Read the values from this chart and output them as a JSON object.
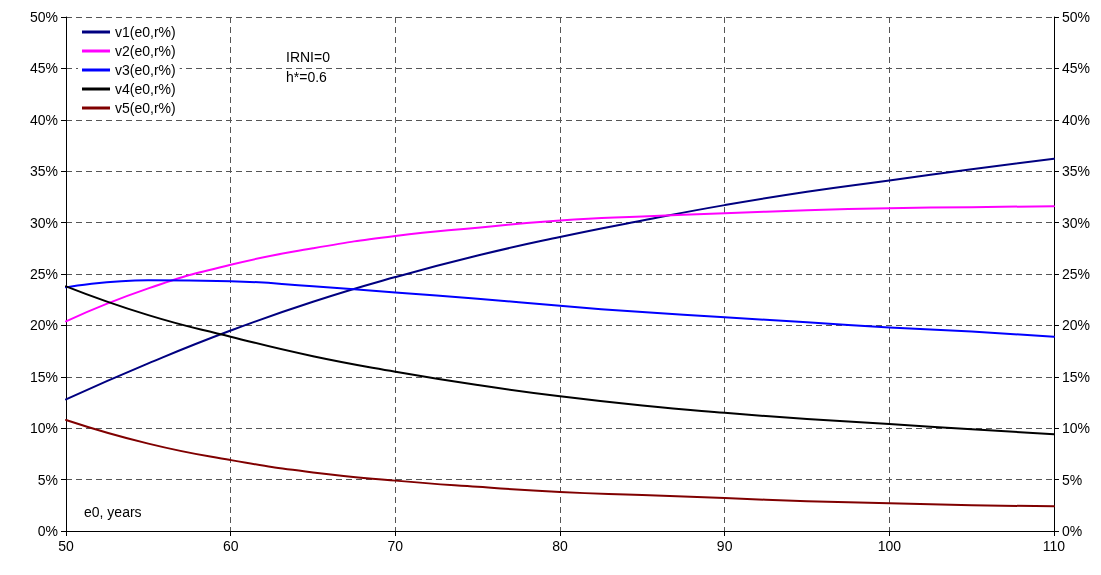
{
  "chart_data": {
    "type": "line",
    "xlabel": "e0, years",
    "annotations": [
      "IRNI=0\nh*=0.6"
    ],
    "x": [
      50,
      55,
      60,
      65,
      70,
      75,
      80,
      85,
      90,
      95,
      100,
      105,
      110
    ],
    "xlim": [
      50,
      110
    ],
    "xticks": [
      50,
      60,
      70,
      80,
      90,
      100,
      110
    ],
    "ylim": [
      0,
      50
    ],
    "yticks": [
      {
        "value": 0,
        "label": "0%"
      },
      {
        "value": 5,
        "label": "5%"
      },
      {
        "value": 10,
        "label": "10%"
      },
      {
        "value": 15,
        "label": "15%"
      },
      {
        "value": 20,
        "label": "20%"
      },
      {
        "value": 25,
        "label": "25%"
      },
      {
        "value": 30,
        "label": "30%"
      },
      {
        "value": 35,
        "label": "35%"
      },
      {
        "value": 40,
        "label": "40%"
      },
      {
        "value": 45,
        "label": "45%"
      },
      {
        "value": 50,
        "label": "50%"
      }
    ],
    "y2lim": [
      0,
      50
    ],
    "y2ticks": [
      {
        "value": 0,
        "label": "0%"
      },
      {
        "value": 5,
        "label": "5%"
      },
      {
        "value": 10,
        "label": "10%"
      },
      {
        "value": 15,
        "label": "15%"
      },
      {
        "value": 20,
        "label": "20%"
      },
      {
        "value": 25,
        "label": "25%"
      },
      {
        "value": 30,
        "label": "30%"
      },
      {
        "value": 35,
        "label": "35%"
      },
      {
        "value": 40,
        "label": "40%"
      },
      {
        "value": 45,
        "label": "45%"
      },
      {
        "value": 50,
        "label": "50%"
      }
    ],
    "grid": true,
    "legend": "top left",
    "marker": "none",
    "line_style": "solid",
    "series": [
      {
        "name": "v1(e0,r%)",
        "color": "#000080",
        "values": [
          12.8,
          16.3,
          19.5,
          22.3,
          24.7,
          26.8,
          28.6,
          30.2,
          31.7,
          33.0,
          34.1,
          35.2,
          36.2
        ]
      },
      {
        "name": "v2(e0,r%)",
        "color": "#ff00ff",
        "values": [
          20.4,
          23.6,
          25.9,
          27.5,
          28.7,
          29.5,
          30.2,
          30.6,
          30.9,
          31.2,
          31.4,
          31.5,
          31.6
        ]
      },
      {
        "name": "v3(e0,r%)",
        "color": "#0000ff",
        "values": [
          23.7,
          24.4,
          24.3,
          23.8,
          23.2,
          22.6,
          21.9,
          21.3,
          20.8,
          20.3,
          19.8,
          19.4,
          18.9
        ]
      },
      {
        "name": "v4(e0,r%)",
        "color": "#000000",
        "values": [
          23.8,
          21.0,
          18.9,
          17.0,
          15.5,
          14.2,
          13.1,
          12.2,
          11.5,
          10.9,
          10.4,
          9.9,
          9.4
        ]
      },
      {
        "name": "v5(e0,r%)",
        "color": "#800000",
        "values": [
          10.8,
          8.5,
          6.9,
          5.7,
          4.9,
          4.3,
          3.8,
          3.5,
          3.2,
          2.9,
          2.7,
          2.5,
          2.4
        ]
      }
    ]
  }
}
